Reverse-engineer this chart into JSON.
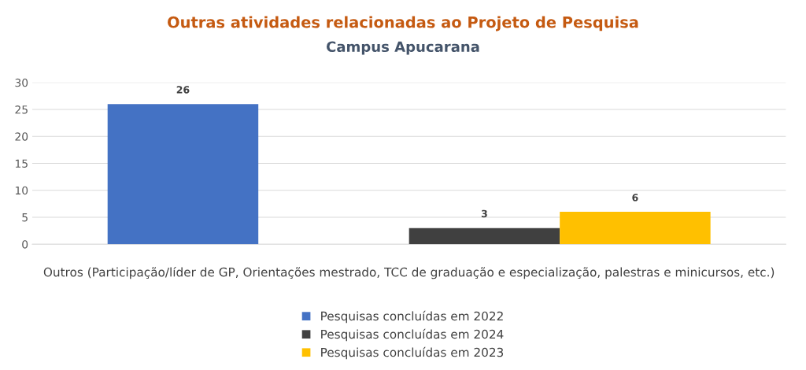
{
  "chart_data": {
    "type": "bar",
    "title": "Outras atividades relacionadas ao Projeto de Pesquisa",
    "subtitle": "Campus Apucarana",
    "categories": [
      "Outros (Participação/líder de GP, Orientações mestrado, TCC de graduação e especialização, palestras e minicursos, etc.)"
    ],
    "series": [
      {
        "name": "Pesquisas concluídas em 2022",
        "color": "#4472c4",
        "values": [
          26
        ]
      },
      {
        "values": [
          null
        ]
      },
      {
        "name": "Pesquisas concluídas em 2024",
        "color": "#404040",
        "values": [
          3
        ]
      },
      {
        "name": "Pesquisas concluídas em 2023",
        "color": "#ffc000",
        "values": [
          6
        ]
      }
    ],
    "ylim": [
      0,
      30
    ],
    "yticks": [
      0,
      5,
      10,
      15,
      20,
      25,
      30
    ],
    "grid": "y",
    "legend": "bottom",
    "data_labels": true
  }
}
